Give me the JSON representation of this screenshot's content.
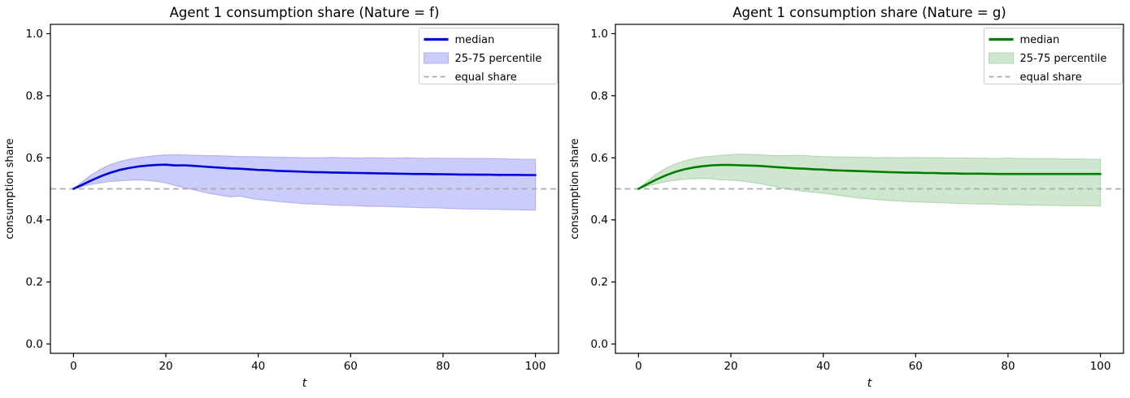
{
  "figure": {
    "background": "#ffffff",
    "text_color": "#000000",
    "spine_color": "#000000"
  },
  "chart_data": [
    {
      "type": "line",
      "title": "Agent 1 consumption share (Nature = f)",
      "xlabel": "t",
      "ylabel": "consumption share",
      "xlim": [
        -5,
        105
      ],
      "ylim": [
        -0.03,
        1.03
      ],
      "xticks": [
        0,
        20,
        40,
        60,
        80,
        100
      ],
      "yticks": [
        0.0,
        0.2,
        0.4,
        0.6,
        0.8,
        1.0
      ],
      "grid": false,
      "legend_position": "upper right",
      "legend": [
        {
          "label": "median",
          "type": "line"
        },
        {
          "label": "25-75 percentile",
          "type": "patch"
        },
        {
          "label": "equal share",
          "type": "dashed"
        }
      ],
      "equal_share": 0.5,
      "colors": {
        "median": "#0000dd",
        "band_fill": "#ccccfa",
        "band_edge": "#b2b2ef",
        "equal_share": "#ababab"
      },
      "x": [
        0,
        2,
        4,
        6,
        8,
        10,
        12,
        14,
        16,
        18,
        20,
        22,
        24,
        26,
        28,
        30,
        32,
        34,
        36,
        38,
        40,
        42,
        44,
        46,
        48,
        50,
        52,
        54,
        56,
        58,
        60,
        62,
        64,
        66,
        68,
        70,
        72,
        74,
        76,
        78,
        80,
        82,
        84,
        86,
        88,
        90,
        92,
        94,
        96,
        98,
        100
      ],
      "series": [
        {
          "name": "median",
          "values": [
            0.5,
            0.514,
            0.528,
            0.541,
            0.552,
            0.561,
            0.567,
            0.572,
            0.575,
            0.577,
            0.578,
            0.5755,
            0.576,
            0.574,
            0.572,
            0.57,
            0.568,
            0.566,
            0.565,
            0.563,
            0.561,
            0.56,
            0.558,
            0.557,
            0.556,
            0.555,
            0.554,
            0.5535,
            0.5525,
            0.552,
            0.5515,
            0.551,
            0.5505,
            0.55,
            0.5495,
            0.549,
            0.5485,
            0.548,
            0.548,
            0.5475,
            0.547,
            0.5465,
            0.546,
            0.546,
            0.5455,
            0.5455,
            0.545,
            0.545,
            0.545,
            0.5445,
            0.5445
          ]
        },
        {
          "name": "p25",
          "values": [
            0.5,
            0.508,
            0.515,
            0.52,
            0.524,
            0.526,
            0.528,
            0.529,
            0.527,
            0.524,
            0.519,
            0.511,
            0.503,
            0.497,
            0.49,
            0.484,
            0.479,
            0.474,
            0.477,
            0.471,
            0.466,
            0.463,
            0.46,
            0.457,
            0.455,
            0.452,
            0.451,
            0.45,
            0.448,
            0.447,
            0.447,
            0.445,
            0.444,
            0.444,
            0.443,
            0.442,
            0.441,
            0.44,
            0.439,
            0.439,
            0.438,
            0.437,
            0.436,
            0.435,
            0.435,
            0.434,
            0.434,
            0.433,
            0.433,
            0.432,
            0.432
          ]
        },
        {
          "name": "p75",
          "values": [
            0.5,
            0.524,
            0.546,
            0.564,
            0.578,
            0.588,
            0.595,
            0.6,
            0.604,
            0.607,
            0.609,
            0.61,
            0.609,
            0.608,
            0.607,
            0.607,
            0.606,
            0.605,
            0.604,
            0.604,
            0.603,
            0.602,
            0.602,
            0.601,
            0.601,
            0.6,
            0.6,
            0.6,
            0.601,
            0.6,
            0.6,
            0.599,
            0.6,
            0.6,
            0.599,
            0.599,
            0.6,
            0.599,
            0.598,
            0.599,
            0.598,
            0.598,
            0.598,
            0.597,
            0.598,
            0.597,
            0.597,
            0.596,
            0.596,
            0.595,
            0.595
          ]
        }
      ]
    },
    {
      "type": "line",
      "title": "Agent 1 consumption share (Nature = g)",
      "xlabel": "t",
      "ylabel": "consumption share",
      "xlim": [
        -5,
        105
      ],
      "ylim": [
        -0.03,
        1.03
      ],
      "xticks": [
        0,
        20,
        40,
        60,
        80,
        100
      ],
      "yticks": [
        0.0,
        0.2,
        0.4,
        0.6,
        0.8,
        1.0
      ],
      "grid": false,
      "legend_position": "upper right",
      "legend": [
        {
          "label": "median",
          "type": "line"
        },
        {
          "label": "25-75 percentile",
          "type": "patch"
        },
        {
          "label": "equal share",
          "type": "dashed"
        }
      ],
      "equal_share": 0.5,
      "colors": {
        "median": "#007d00",
        "band_fill": "#cfe6cf",
        "band_edge": "#b4d8b4",
        "equal_share": "#ababab"
      },
      "x": [
        0,
        2,
        4,
        6,
        8,
        10,
        12,
        14,
        16,
        18,
        20,
        22,
        24,
        26,
        28,
        30,
        32,
        34,
        36,
        38,
        40,
        42,
        44,
        46,
        48,
        50,
        52,
        54,
        56,
        58,
        60,
        62,
        64,
        66,
        68,
        70,
        72,
        74,
        76,
        78,
        80,
        82,
        84,
        86,
        88,
        90,
        92,
        94,
        96,
        98,
        100
      ],
      "series": [
        {
          "name": "median",
          "values": [
            0.5,
            0.516,
            0.531,
            0.544,
            0.555,
            0.563,
            0.569,
            0.573,
            0.576,
            0.577,
            0.577,
            0.576,
            0.575,
            0.574,
            0.572,
            0.57,
            0.568,
            0.566,
            0.565,
            0.563,
            0.562,
            0.56,
            0.559,
            0.558,
            0.557,
            0.556,
            0.555,
            0.554,
            0.553,
            0.552,
            0.552,
            0.551,
            0.551,
            0.55,
            0.55,
            0.549,
            0.549,
            0.549,
            0.5485,
            0.548,
            0.548,
            0.548,
            0.548,
            0.548,
            0.548,
            0.548,
            0.548,
            0.548,
            0.548,
            0.548,
            0.548
          ]
        },
        {
          "name": "p25",
          "values": [
            0.5,
            0.509,
            0.517,
            0.523,
            0.528,
            0.531,
            0.533,
            0.534,
            0.532,
            0.529,
            0.528,
            0.526,
            0.522,
            0.518,
            0.512,
            0.506,
            0.5,
            0.496,
            0.492,
            0.489,
            0.486,
            0.482,
            0.478,
            0.474,
            0.47,
            0.468,
            0.465,
            0.463,
            0.461,
            0.459,
            0.458,
            0.457,
            0.456,
            0.455,
            0.454,
            0.453,
            0.452,
            0.451,
            0.451,
            0.45,
            0.449,
            0.449,
            0.448,
            0.448,
            0.447,
            0.447,
            0.446,
            0.446,
            0.446,
            0.445,
            0.445
          ]
        },
        {
          "name": "p75",
          "values": [
            0.5,
            0.526,
            0.549,
            0.567,
            0.58,
            0.59,
            0.597,
            0.602,
            0.605,
            0.608,
            0.61,
            0.612,
            0.611,
            0.61,
            0.608,
            0.607,
            0.607,
            0.608,
            0.607,
            0.605,
            0.604,
            0.603,
            0.602,
            0.602,
            0.601,
            0.601,
            0.6,
            0.601,
            0.6,
            0.6,
            0.601,
            0.6,
            0.6,
            0.6,
            0.599,
            0.6,
            0.599,
            0.599,
            0.598,
            0.598,
            0.599,
            0.598,
            0.598,
            0.597,
            0.597,
            0.597,
            0.596,
            0.596,
            0.596,
            0.595,
            0.595
          ]
        }
      ]
    }
  ]
}
